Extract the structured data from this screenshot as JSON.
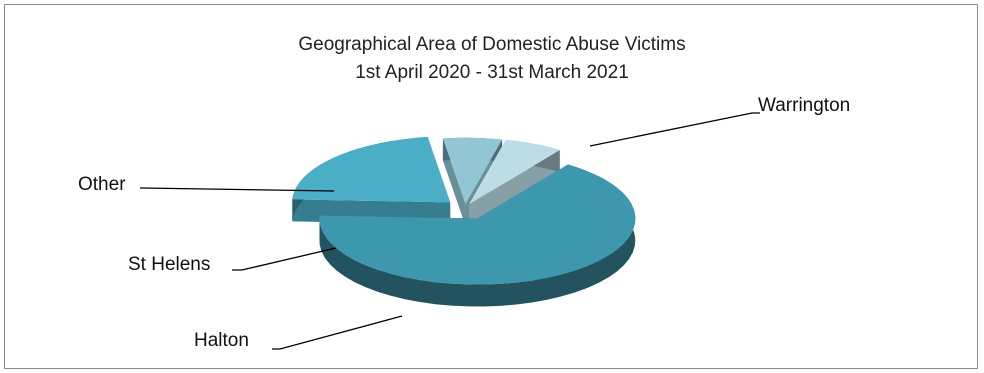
{
  "chart_data": {
    "type": "pie",
    "style": "3d-exploded",
    "title": "Geographical Area of Domestic Abuse Victims",
    "subtitle": "1st April 2020 - 31st March 2021",
    "slices": [
      {
        "label": "Warrington",
        "value": 66,
        "color": "#3d97ad"
      },
      {
        "label": "Halton",
        "value": 22,
        "color": "#4aaec6"
      },
      {
        "label": "St Helens",
        "value": 6,
        "color": "#92c6d4"
      },
      {
        "label": "Other",
        "value": 6,
        "color": "#bcdde6"
      }
    ],
    "legend": "none"
  }
}
